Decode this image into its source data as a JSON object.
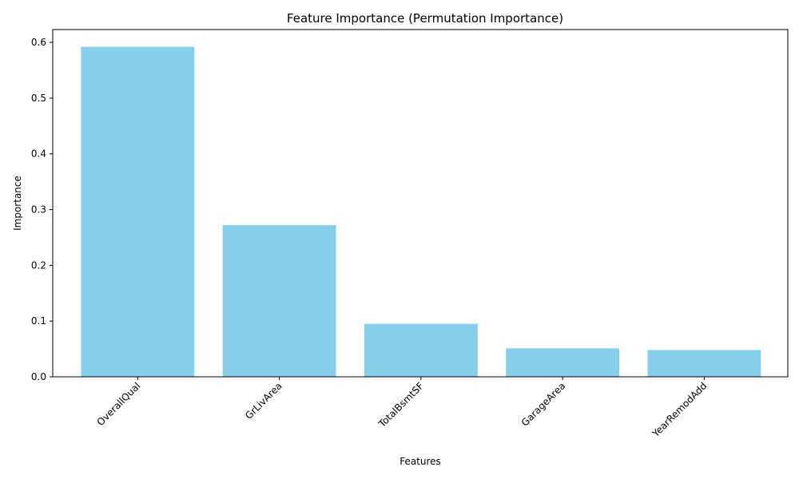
{
  "chart_data": {
    "type": "bar",
    "title": "Feature Importance (Permutation Importance)",
    "xlabel": "Features",
    "ylabel": "Importance",
    "categories": [
      "OverallQual",
      "GrLivArea",
      "TotalBsmtSF",
      "GarageArea",
      "YearRemodAdd"
    ],
    "values": [
      0.592,
      0.272,
      0.095,
      0.051,
      0.048
    ],
    "ylim": [
      0,
      0.623
    ],
    "yticks": [
      "0.0",
      "0.1",
      "0.2",
      "0.3",
      "0.4",
      "0.5",
      "0.6"
    ],
    "bar_color": "#87CEEB",
    "grid": false,
    "legend": "none"
  }
}
